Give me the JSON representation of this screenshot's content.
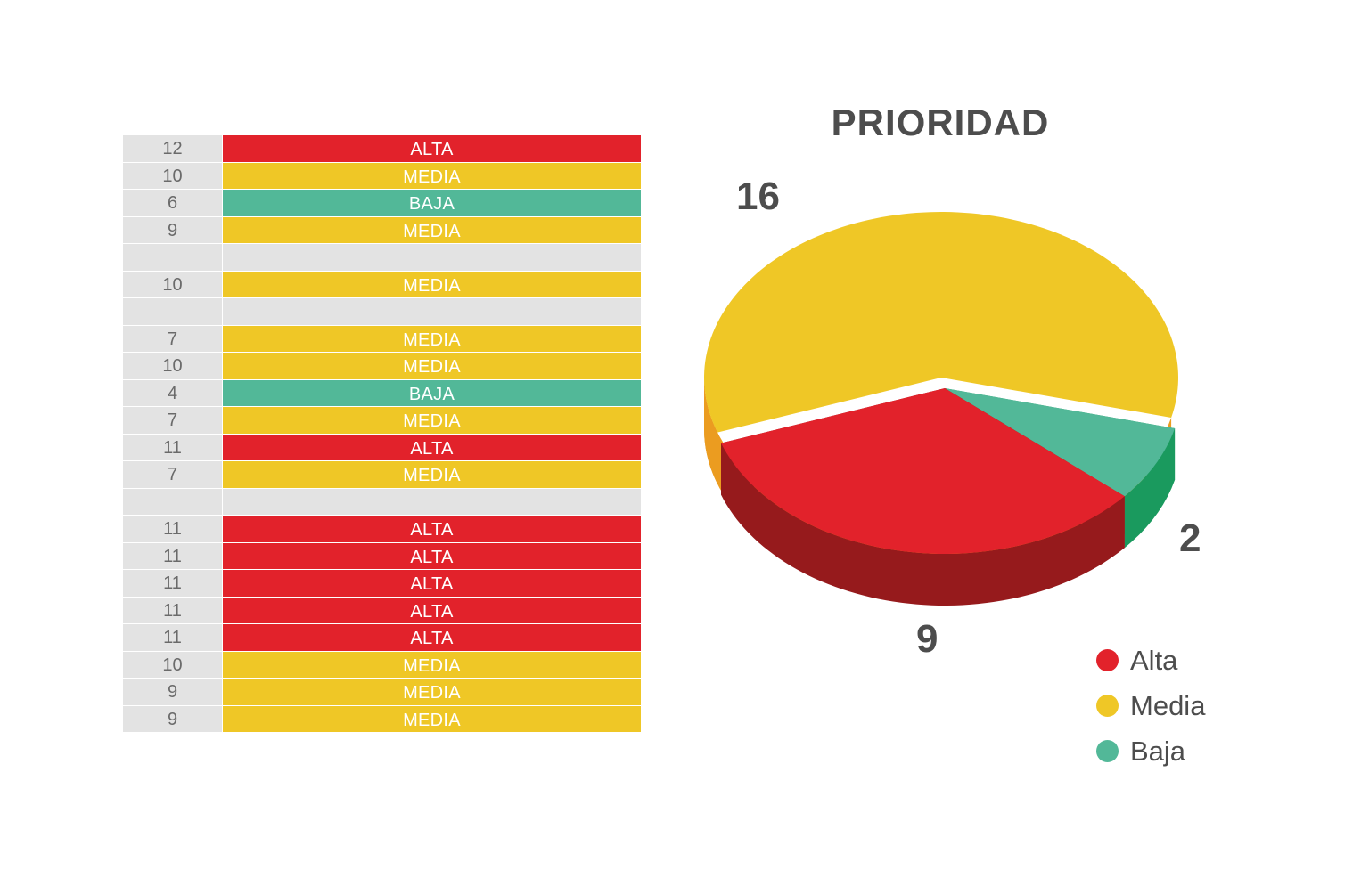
{
  "table": {
    "rows": [
      {
        "num": "12",
        "label": "ALTA",
        "level": "alta"
      },
      {
        "num": "10",
        "label": "MEDIA",
        "level": "media"
      },
      {
        "num": "6",
        "label": "BAJA",
        "level": "baja"
      },
      {
        "num": "9",
        "label": "MEDIA",
        "level": "media"
      },
      {
        "num": "",
        "label": "",
        "level": "empty"
      },
      {
        "num": "10",
        "label": "MEDIA",
        "level": "media"
      },
      {
        "num": "",
        "label": "",
        "level": "empty"
      },
      {
        "num": "7",
        "label": "MEDIA",
        "level": "media"
      },
      {
        "num": "10",
        "label": "MEDIA",
        "level": "media"
      },
      {
        "num": "4",
        "label": "BAJA",
        "level": "baja"
      },
      {
        "num": "7",
        "label": "MEDIA",
        "level": "media"
      },
      {
        "num": "11",
        "label": "ALTA",
        "level": "alta"
      },
      {
        "num": "7",
        "label": "MEDIA",
        "level": "media"
      },
      {
        "num": "",
        "label": "",
        "level": "empty"
      },
      {
        "num": "11",
        "label": "ALTA",
        "level": "alta"
      },
      {
        "num": "11",
        "label": "ALTA",
        "level": "alta"
      },
      {
        "num": "11",
        "label": "ALTA",
        "level": "alta"
      },
      {
        "num": "11",
        "label": "ALTA",
        "level": "alta"
      },
      {
        "num": "11",
        "label": "ALTA",
        "level": "alta"
      },
      {
        "num": "10",
        "label": "MEDIA",
        "level": "media"
      },
      {
        "num": "9",
        "label": "MEDIA",
        "level": "media"
      },
      {
        "num": "9",
        "label": "MEDIA",
        "level": "media"
      }
    ]
  },
  "colors": {
    "alta": "#e2222b",
    "alta_side": "#961a1c",
    "media": "#efc726",
    "media_side": "#eb9c20",
    "baja": "#52b898",
    "baja_side": "#1a9a5e",
    "empty": "#e3e3e3"
  },
  "chart_data": {
    "type": "pie",
    "title": "PRIORIDAD",
    "slices": [
      {
        "name": "Alta",
        "value": 9,
        "label": "9"
      },
      {
        "name": "Media",
        "value": 16,
        "label": "16"
      },
      {
        "name": "Baja",
        "value": 2,
        "label": "2"
      }
    ],
    "legend": [
      "Alta",
      "Media",
      "Baja"
    ],
    "legend_position": "bottom-right"
  }
}
